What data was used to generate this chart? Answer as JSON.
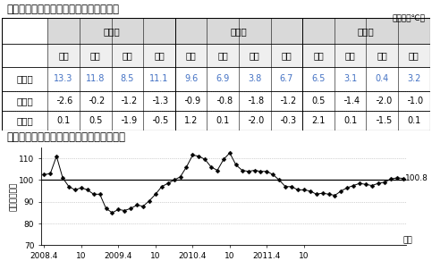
{
  "table_title": "（参考１）名古屋地区の気温（１２月）",
  "unit_label": "（単位：℃）",
  "col0_header": "",
  "main_headers": [
    "最　高",
    "平　均",
    "最　低"
  ],
  "sub_headers": [
    "上旬",
    "中旬",
    "下旬",
    "月間"
  ],
  "row_labels": [
    "本　年",
    "前年差",
    "平年差"
  ],
  "row0_values": [
    "13.3",
    "11.8",
    "8.5",
    "11.1",
    "9.6",
    "6.9",
    "3.8",
    "6.7",
    "6.5",
    "3.1",
    "0.4",
    "3.2"
  ],
  "row1_values": [
    "╶2.6",
    "╶0.2",
    "╶1.2",
    "╶1.3",
    "╶0.9",
    "╶0.8",
    "╶1.8",
    "╶1.2",
    "0.5",
    "╶1.4",
    "╶2.0",
    "╶1.0"
  ],
  "row2_values": [
    "0.1",
    "0.5",
    "╶1.9",
    "╶0.5",
    "1.2",
    "0.1",
    "╶2.0",
    "╶0.3",
    "2.1",
    "0.1",
    "╶1.5",
    "0.1"
  ],
  "row0_color": "#4472c4",
  "row12_color": "#000000",
  "graph_title": "（参考２）　発受電電力量対前年比の推移",
  "graph_ylabel": "前年比（％）",
  "graph_xlabel": "年月",
  "graph_ylim": [
    70,
    115
  ],
  "graph_yticks": [
    70,
    80,
    90,
    100,
    110
  ],
  "graph_last_value": "100.8",
  "graph_xtick_pos": [
    0,
    6,
    12,
    18,
    24,
    30,
    36,
    42
  ],
  "graph_xtick_labels": [
    "2008.4",
    "10",
    "2009.4",
    "10",
    "2010.4",
    "10",
    "2011.4",
    "10"
  ],
  "graph_data": [
    102.5,
    103.0,
    111.0,
    101.0,
    97.0,
    95.5,
    96.5,
    95.5,
    93.5,
    93.5,
    87.0,
    85.0,
    86.5,
    86.0,
    87.0,
    88.5,
    88.0,
    90.5,
    93.5,
    97.0,
    98.5,
    100.0,
    101.5,
    106.0,
    111.5,
    111.0,
    109.5,
    106.0,
    104.5,
    109.5,
    112.5,
    107.0,
    104.5,
    104.0,
    104.5,
    104.0,
    104.0,
    102.5,
    100.0,
    97.0,
    97.0,
    95.5,
    95.5,
    95.0,
    93.5,
    94.0,
    93.5,
    93.0,
    95.0,
    96.5,
    97.5,
    98.5,
    98.0,
    97.5,
    98.5,
    99.0,
    100.5,
    101.0,
    100.8
  ],
  "header_bg": "#d9d9d9",
  "subheader_bg": "#efefef",
  "background_color": "#ffffff",
  "grid_color": "#aaaaaa",
  "font_size_title": 8.5,
  "font_size_table_header": 7.5,
  "font_size_table_data": 7,
  "font_size_graph": 7
}
